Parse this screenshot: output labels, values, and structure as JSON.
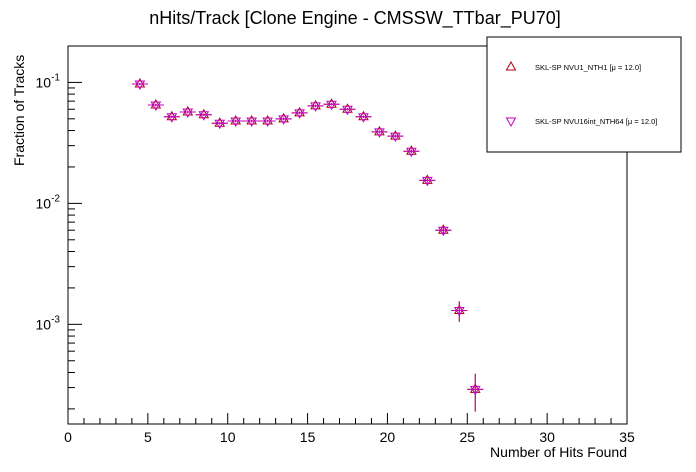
{
  "chart_data": {
    "type": "scatter",
    "title": "nHits/Track [Clone Engine - CMSSW_TTbar_PU70]",
    "xlabel": "Number of Hits Found",
    "ylabel": "Fraction of Tracks",
    "xlim": [
      0,
      35
    ],
    "ylim": [
      0.00015,
      0.2
    ],
    "y_scale": "log",
    "grid": false,
    "legend_position": "top-right",
    "x_ticks": [
      "0",
      "5",
      "10",
      "15",
      "20",
      "25",
      "30",
      "35"
    ],
    "y_ticks": [
      {
        "base": "10",
        "exp": "-1"
      },
      {
        "base": "10",
        "exp": "-2"
      },
      {
        "base": "10",
        "exp": "-3"
      }
    ],
    "series": [
      {
        "name": "SKL-SP NVU1_NTH1 [μ = 12.0]",
        "marker": "triangle-up",
        "color": "#b0000c",
        "x": [
          4.5,
          5.5,
          6.5,
          7.5,
          8.5,
          9.5,
          10.5,
          11.5,
          12.5,
          13.5,
          14.5,
          15.5,
          16.5,
          17.5,
          18.5,
          19.5,
          20.5,
          21.5,
          22.5,
          23.5,
          24.5,
          25.5
        ],
        "y": [
          0.097,
          0.065,
          0.052,
          0.057,
          0.054,
          0.046,
          0.048,
          0.048,
          0.048,
          0.05,
          0.056,
          0.064,
          0.066,
          0.06,
          0.052,
          0.039,
          0.036,
          0.027,
          0.0155,
          0.006,
          0.0013,
          0.00029
        ],
        "y_err": [
          0.002,
          0.0015,
          0.0012,
          0.0013,
          0.0012,
          0.0011,
          0.0011,
          0.0011,
          0.0011,
          0.0012,
          0.0013,
          0.0014,
          0.0015,
          0.0014,
          0.0012,
          0.001,
          0.001,
          0.0009,
          0.0006,
          0.0004,
          0.00025,
          0.0001
        ]
      },
      {
        "name": "SKL-SP NVU16int_NTH64 [μ = 12.0]",
        "marker": "triangle-down",
        "color": "#c400c4",
        "x": [
          4.5,
          5.5,
          6.5,
          7.5,
          8.5,
          9.5,
          10.5,
          11.5,
          12.5,
          13.5,
          14.5,
          15.5,
          16.5,
          17.5,
          18.5,
          19.5,
          20.5,
          21.5,
          22.5,
          23.5,
          24.5,
          25.5
        ],
        "y": [
          0.097,
          0.065,
          0.052,
          0.057,
          0.054,
          0.046,
          0.048,
          0.048,
          0.048,
          0.05,
          0.056,
          0.064,
          0.066,
          0.06,
          0.052,
          0.039,
          0.036,
          0.027,
          0.0155,
          0.006,
          0.0013,
          0.00029
        ],
        "y_err": [
          0.002,
          0.0015,
          0.0012,
          0.0013,
          0.0012,
          0.0011,
          0.0011,
          0.0011,
          0.0011,
          0.0012,
          0.0013,
          0.0014,
          0.0015,
          0.0014,
          0.0012,
          0.001,
          0.001,
          0.0009,
          0.0006,
          0.0004,
          0.00025,
          0.0001
        ]
      }
    ]
  }
}
